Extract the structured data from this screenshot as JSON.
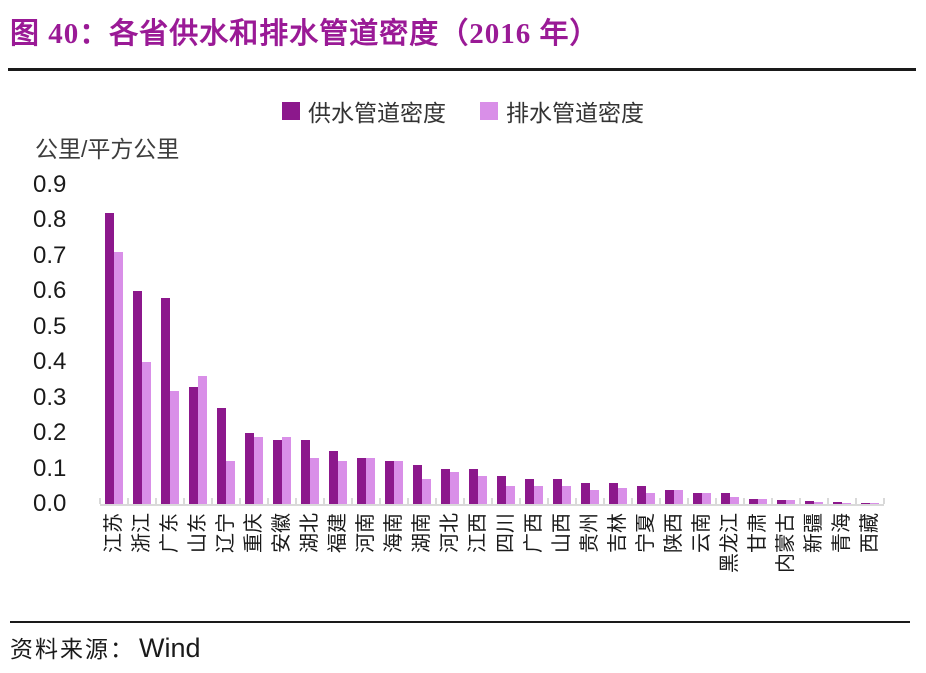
{
  "header": {
    "title": "图 40：各省供水和排水管道密度（2016 年）"
  },
  "legend": [
    {
      "label": "供水管道密度",
      "color": "#8C188C"
    },
    {
      "label": "排水管道密度",
      "color": "#D98FE8"
    }
  ],
  "y_axis": {
    "unit": "公里/平方公里",
    "ticks": [
      "0.9",
      "0.8",
      "0.7",
      "0.6",
      "0.5",
      "0.4",
      "0.3",
      "0.2",
      "0.1",
      "0.0"
    ]
  },
  "footer": {
    "source_prefix": "资料来源：",
    "source": "Wind"
  },
  "colors": {
    "title": "#9A1A96",
    "supply_bar": "#8C188C",
    "drainage_bar": "#D98FE8",
    "axis_line": "#D9D9D9"
  },
  "chart_data": {
    "type": "bar",
    "title": "各省供水和排水管道密度（2016 年）",
    "xlabel": "",
    "ylabel": "公里/平方公里",
    "ylim": [
      0,
      0.9
    ],
    "grid": false,
    "legend_position": "top",
    "categories": [
      "江苏",
      "浙江",
      "广东",
      "山东",
      "辽宁",
      "重庆",
      "安徽",
      "湖北",
      "福建",
      "河南",
      "海南",
      "湖南",
      "河北",
      "江西",
      "四川",
      "广西",
      "山西",
      "贵州",
      "吉林",
      "宁夏",
      "陕西",
      "云南",
      "黑龙江",
      "甘肃",
      "内蒙古",
      "新疆",
      "青海",
      "西藏"
    ],
    "series": [
      {
        "name": "供水管道密度",
        "color": "#8C188C",
        "values": [
          0.82,
          0.6,
          0.58,
          0.33,
          0.27,
          0.2,
          0.18,
          0.18,
          0.15,
          0.13,
          0.12,
          0.11,
          0.1,
          0.1,
          0.08,
          0.07,
          0.07,
          0.06,
          0.06,
          0.05,
          0.04,
          0.03,
          0.03,
          0.015,
          0.01,
          0.008,
          0.005,
          0.003
        ]
      },
      {
        "name": "排水管道密度",
        "color": "#D98FE8",
        "values": [
          0.71,
          0.4,
          0.32,
          0.36,
          0.12,
          0.19,
          0.19,
          0.13,
          0.12,
          0.13,
          0.12,
          0.07,
          0.09,
          0.08,
          0.05,
          0.05,
          0.05,
          0.04,
          0.045,
          0.03,
          0.04,
          0.03,
          0.02,
          0.015,
          0.012,
          0.006,
          0.004,
          0.002
        ]
      }
    ]
  }
}
